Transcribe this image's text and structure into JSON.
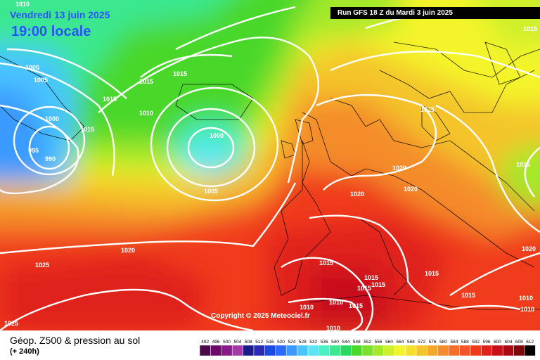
{
  "header": {
    "date": "Vendredi 13 juin 2025",
    "time": "19:00 locale",
    "run": "Run GFS 18 Z du Mardi 3 juin 2025"
  },
  "footer": {
    "title": "Géop. Z500 & pression au sol",
    "subtitle": "(+ 240h)",
    "copyright": "Copyright © 2025 Meteociel.fr"
  },
  "isobar_labels": [
    "1010",
    "1005",
    "1005",
    "1000",
    "995",
    "990",
    "1015",
    "1015",
    "1015",
    "1010",
    "1000",
    "1005",
    "1025",
    "1020",
    "1020",
    "1020",
    "1015",
    "1020",
    "1025",
    "1025",
    "1020",
    "1015",
    "1015",
    "1015",
    "1015",
    "1010",
    "1010",
    "1015",
    "1010",
    "1010",
    "1015",
    "1010",
    "1015",
    "1015",
    "1015"
  ],
  "legend": {
    "values": [
      "492",
      "496",
      "500",
      "504",
      "508",
      "512",
      "516",
      "520",
      "524",
      "528",
      "532",
      "536",
      "540",
      "544",
      "548",
      "552",
      "556",
      "560",
      "564",
      "568",
      "572",
      "576",
      "580",
      "584",
      "588",
      "592",
      "596",
      "600",
      "604",
      "608",
      "612"
    ],
    "colors": [
      "#4a0a4a",
      "#6a0a6a",
      "#8a1a8a",
      "#a43aa4",
      "#1a1a8a",
      "#2a2ab4",
      "#1a4ae0",
      "#2a6aff",
      "#3a9aff",
      "#4ac4ff",
      "#5ae4f4",
      "#4af0c0",
      "#3ae890",
      "#2ad860",
      "#4ad82a",
      "#7ae02a",
      "#a4e82a",
      "#cef02a",
      "#f4f42a",
      "#f4e02a",
      "#f4c42a",
      "#f4a82a",
      "#f48c2a",
      "#f4702a",
      "#f4542a",
      "#f03a1a",
      "#e0221a",
      "#c8101a",
      "#a80a14",
      "#80060e",
      "#000000"
    ]
  }
}
